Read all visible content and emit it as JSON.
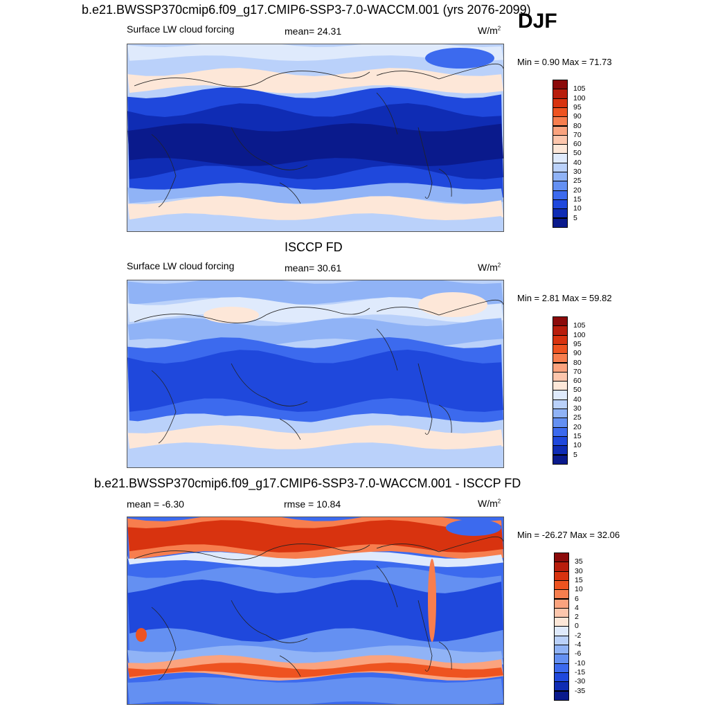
{
  "header": {
    "top_title": "b.e21.BWSSP370cmip6.f09_g17.CMIP6-SSP3-7.0-WACCM.001 (yrs 2076-2099)",
    "season": "DJF"
  },
  "panels": [
    {
      "variable": "Surface LW cloud forcing",
      "stat": "mean=  24.31",
      "units": "W/m",
      "units_sup": "2",
      "minmax": "Min =   0.90 Max =  71.73",
      "pattern": "model"
    },
    {
      "title": "ISCCP FD",
      "variable": "Surface LW cloud forcing",
      "stat": "mean=  30.61",
      "units": "W/m",
      "units_sup": "2",
      "minmax": "Min =   2.81 Max =  59.82",
      "pattern": "obs"
    },
    {
      "title": "b.e21.BWSSP370cmip6.f09_g17.CMIP6-SSP3-7.0-WACCM.001 - ISCCP FD",
      "stat_left": "mean =  -6.30",
      "stat_mid": "rmse =  10.84",
      "units": "W/m",
      "units_sup": "2",
      "minmax": "Min = -26.27 Max =  32.06",
      "pattern": "diff"
    }
  ],
  "colorbar_abs": {
    "labels": [
      "105",
      "100",
      "95",
      "90",
      "80",
      "70",
      "60",
      "50",
      "40",
      "30",
      "25",
      "20",
      "15",
      "10",
      "5"
    ],
    "colors": [
      "#8b0a0a",
      "#b81d0c",
      "#d8330f",
      "#ee5320",
      "#f77e4e",
      "#fba37e",
      "#fdc6ac",
      "#fde7d8",
      "#dfeafc",
      "#bad1fa",
      "#90b3f6",
      "#6490f2",
      "#3c6aee",
      "#1f48dc",
      "#0f2cb4",
      "#0a1a8c"
    ]
  },
  "colorbar_diff": {
    "labels": [
      "35",
      "30",
      "15",
      "10",
      "6",
      "4",
      "2",
      "0",
      "-2",
      "-4",
      "-6",
      "-10",
      "-15",
      "-30",
      "-35"
    ],
    "colors": [
      "#8b0a0a",
      "#b81d0c",
      "#d8330f",
      "#ee5320",
      "#f77e4e",
      "#fba37e",
      "#fdc6ac",
      "#fde7d8",
      "#dfeafc",
      "#bad1fa",
      "#90b3f6",
      "#6490f2",
      "#3c6aee",
      "#1f48dc",
      "#0f2cb4",
      "#0a1a8c"
    ]
  }
}
